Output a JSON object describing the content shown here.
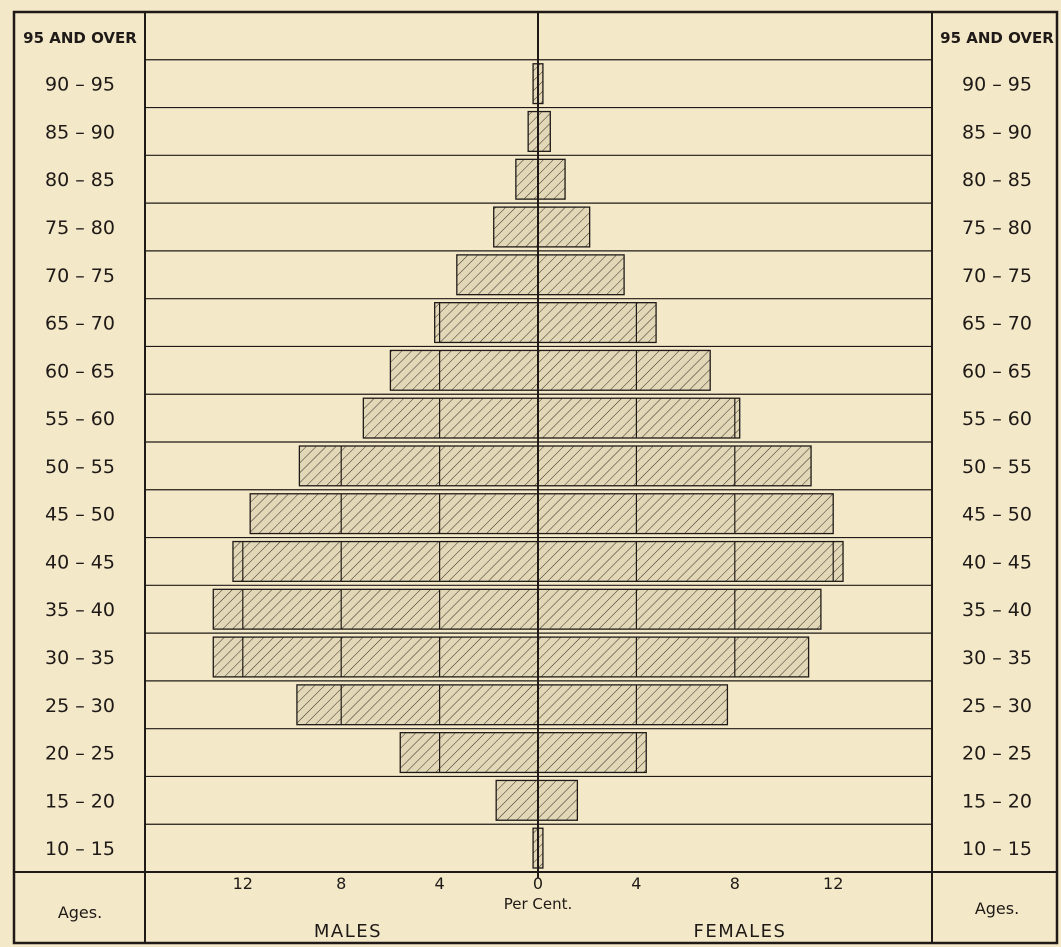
{
  "chart_data": {
    "type": "bar",
    "orientation": "horizontal-population-pyramid",
    "categories": [
      "10 – 15",
      "15 – 20",
      "20 – 25",
      "25 – 30",
      "30 – 35",
      "35 – 40",
      "40 – 45",
      "45 – 50",
      "50 – 55",
      "55 – 60",
      "60 – 65",
      "65 – 70",
      "70 – 75",
      "75 – 80",
      "80 – 85",
      "85 – 90",
      "90 – 95",
      "95 AND OVER"
    ],
    "series": [
      {
        "name": "MALES",
        "values": [
          0.2,
          1.7,
          5.6,
          9.8,
          13.2,
          13.2,
          12.4,
          11.7,
          9.7,
          7.1,
          6.0,
          4.2,
          3.3,
          1.8,
          0.9,
          0.4,
          0.2,
          0.0
        ]
      },
      {
        "name": "FEMALES",
        "values": [
          0.2,
          1.6,
          4.4,
          7.7,
          11.0,
          11.5,
          12.4,
          12.0,
          11.1,
          8.2,
          7.0,
          4.8,
          3.5,
          2.1,
          1.1,
          0.5,
          0.2,
          0.0
        ]
      }
    ],
    "xticks": [
      12,
      8,
      4,
      0,
      4,
      8,
      12
    ],
    "xlabel": "Per Cent.",
    "ylabel": "Ages.",
    "left_label": "MALES",
    "right_label": "FEMALES",
    "xlim": [
      -16,
      16
    ],
    "grid": "vertical lines at 4, 8, 12 per cent inside bars",
    "fill": "diagonal hatching",
    "colors": {
      "background": "#f3e8c8",
      "ink": "#1f1a17",
      "bar_fill": "#e2d7b6"
    }
  }
}
